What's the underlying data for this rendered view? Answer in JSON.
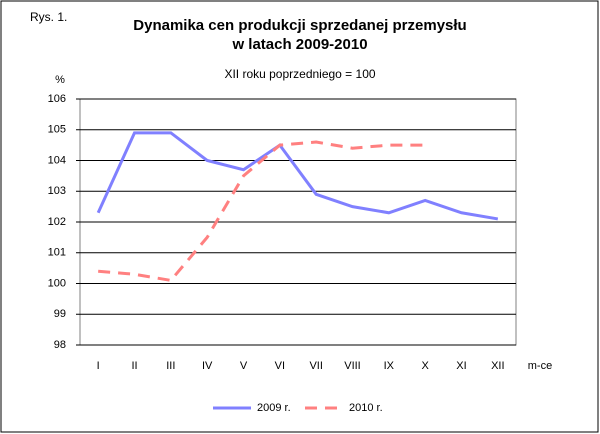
{
  "label": "Rys. 1.",
  "chart_data": {
    "type": "line",
    "title": [
      "Dynamika cen produkcji sprzedanej przemysłu",
      "w latach 2009-2010"
    ],
    "subtitle": "XII roku poprzedniego = 100",
    "y_axis_label": "%",
    "x_axis_label": "m-ce",
    "categories": [
      "I",
      "II",
      "III",
      "IV",
      "V",
      "VI",
      "VII",
      "VIII",
      "IX",
      "X",
      "XI",
      "XII"
    ],
    "series": [
      {
        "name": "2009 r.",
        "color": "#8080ff",
        "dash": false,
        "values": [
          102.3,
          104.9,
          104.9,
          104.0,
          103.7,
          104.5,
          102.9,
          102.5,
          102.3,
          102.7,
          102.3,
          102.1
        ]
      },
      {
        "name": "2010 r.",
        "color": "#ff8080",
        "dash": true,
        "values": [
          100.4,
          100.3,
          100.1,
          101.5,
          103.5,
          104.5,
          104.6,
          104.4,
          104.5,
          104.5,
          null,
          null
        ]
      }
    ],
    "ylim": [
      98,
      106
    ],
    "yticks": [
      98,
      99,
      100,
      101,
      102,
      103,
      104,
      105,
      106
    ],
    "grid": true,
    "legend": "bottom"
  }
}
